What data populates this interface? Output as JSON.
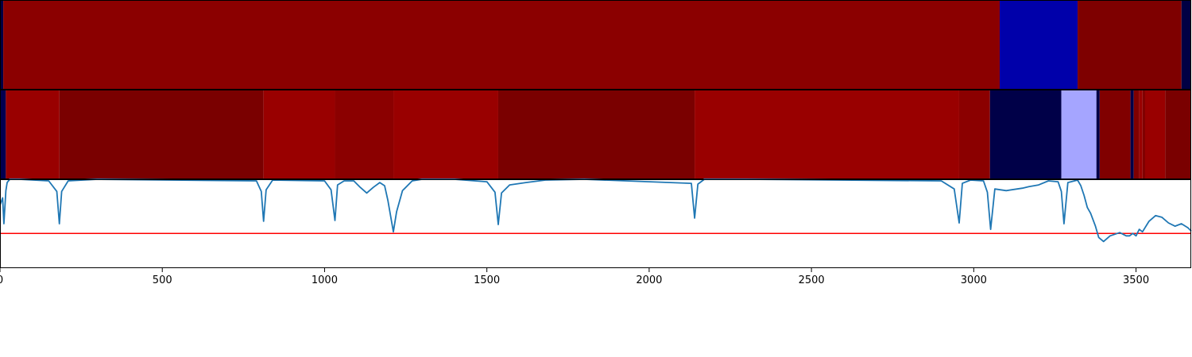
{
  "chart_data": [
    {
      "type": "heatmap",
      "xlim": [
        0,
        3670
      ],
      "segments": [
        {
          "start": 0,
          "end": 10,
          "color": "#000044"
        },
        {
          "start": 10,
          "end": 3080,
          "color": "#8b0000"
        },
        {
          "start": 3080,
          "end": 3320,
          "color": "#0000aa"
        },
        {
          "start": 3320,
          "end": 3640,
          "color": "#7e0000"
        },
        {
          "start": 3640,
          "end": 3670,
          "color": "#000044"
        }
      ]
    },
    {
      "type": "heatmap",
      "xlim": [
        0,
        3670
      ],
      "segments": [
        {
          "start": 0,
          "end": 18,
          "color": "#000050"
        },
        {
          "start": 18,
          "end": 183,
          "color": "#990000"
        },
        {
          "start": 183,
          "end": 812,
          "color": "#7a0000"
        },
        {
          "start": 812,
          "end": 1032,
          "color": "#990000"
        },
        {
          "start": 1032,
          "end": 1212,
          "color": "#8b0000"
        },
        {
          "start": 1212,
          "end": 1535,
          "color": "#990000"
        },
        {
          "start": 1535,
          "end": 2140,
          "color": "#7a0000"
        },
        {
          "start": 2140,
          "end": 2955,
          "color": "#990000"
        },
        {
          "start": 2955,
          "end": 3050,
          "color": "#8b0000"
        },
        {
          "start": 3050,
          "end": 3270,
          "color": "#000048"
        },
        {
          "start": 3270,
          "end": 3378,
          "color": "#a5a5ff"
        },
        {
          "start": 3378,
          "end": 3388,
          "color": "#000048"
        },
        {
          "start": 3388,
          "end": 3483,
          "color": "#800000"
        },
        {
          "start": 3483,
          "end": 3493,
          "color": "#000048"
        },
        {
          "start": 3493,
          "end": 3510,
          "color": "#800000"
        },
        {
          "start": 3510,
          "end": 3520,
          "color": "#990000"
        },
        {
          "start": 3520,
          "end": 3528,
          "color": "#800000"
        },
        {
          "start": 3528,
          "end": 3590,
          "color": "#990000"
        },
        {
          "start": 3590,
          "end": 3670,
          "color": "#7a0000"
        }
      ]
    },
    {
      "type": "line",
      "xlim": [
        0,
        3670
      ],
      "ylim": [
        -0.1,
        1.0
      ],
      "threshold": 0.33,
      "line_color": "#1f77b4",
      "threshold_color": "#ff0000",
      "xticks": [
        0,
        500,
        1000,
        1500,
        2000,
        2500,
        3000,
        3500
      ],
      "xtick_labels": [
        "0",
        "500",
        "1000",
        "1500",
        "2000",
        "2500",
        "3000",
        "3500"
      ],
      "x": [
        0,
        8,
        12,
        18,
        22,
        30,
        60,
        150,
        175,
        183,
        190,
        210,
        300,
        790,
        805,
        812,
        820,
        840,
        1000,
        1020,
        1032,
        1040,
        1060,
        1090,
        1110,
        1130,
        1150,
        1170,
        1185,
        1195,
        1212,
        1222,
        1240,
        1270,
        1300,
        1400,
        1500,
        1525,
        1535,
        1545,
        1570,
        1620,
        1680,
        1800,
        2130,
        2140,
        2150,
        2170,
        2300,
        2900,
        2940,
        2955,
        2965,
        2990,
        3030,
        3042,
        3052,
        3065,
        3100,
        3150,
        3170,
        3200,
        3230,
        3260,
        3270,
        3278,
        3290,
        3320,
        3330,
        3340,
        3350,
        3360,
        3375,
        3385,
        3400,
        3420,
        3450,
        3470,
        3480,
        3490,
        3500,
        3510,
        3520,
        3540,
        3560,
        3580,
        3600,
        3620,
        3640,
        3660,
        3670
      ],
      "y": [
        0.68,
        0.77,
        0.45,
        0.86,
        0.96,
        1.0,
        1.0,
        0.98,
        0.85,
        0.45,
        0.85,
        0.98,
        1.0,
        0.98,
        0.85,
        0.48,
        0.87,
        0.99,
        0.98,
        0.87,
        0.49,
        0.93,
        0.98,
        0.98,
        0.9,
        0.83,
        0.9,
        0.96,
        0.92,
        0.74,
        0.35,
        0.6,
        0.86,
        0.98,
        1.0,
        1.0,
        0.97,
        0.84,
        0.44,
        0.83,
        0.93,
        0.96,
        0.99,
        1.0,
        0.95,
        0.52,
        0.94,
        1.0,
        1.0,
        0.98,
        0.88,
        0.46,
        0.95,
        0.99,
        0.98,
        0.84,
        0.38,
        0.88,
        0.86,
        0.89,
        0.91,
        0.93,
        0.98,
        0.97,
        0.85,
        0.45,
        0.96,
        0.99,
        0.92,
        0.8,
        0.65,
        0.58,
        0.42,
        0.28,
        0.23,
        0.3,
        0.34,
        0.3,
        0.3,
        0.33,
        0.3,
        0.38,
        0.35,
        0.48,
        0.55,
        0.53,
        0.46,
        0.42,
        0.45,
        0.4,
        0.36
      ]
    }
  ]
}
